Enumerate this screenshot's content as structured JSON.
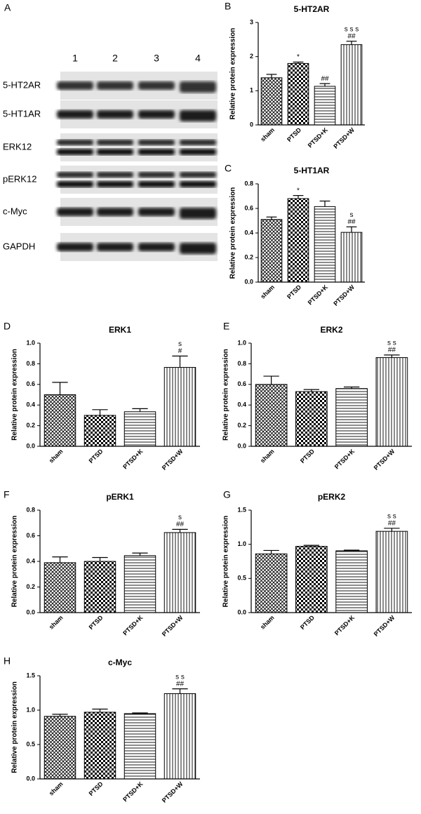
{
  "blot": {
    "panel": "A",
    "lanes": [
      "1",
      "2",
      "3",
      "4"
    ],
    "rows": [
      "5-HT2AR",
      "5-HT1AR",
      "ERK12",
      "pERK12",
      "c-Myc",
      "GAPDH"
    ]
  },
  "chart_data": [
    {
      "type": "bar",
      "panel": "B",
      "title": "5-HT2AR",
      "ylabel": "Relative protein expression",
      "categories": [
        "sham",
        "PTSD",
        "PTSD+K",
        "PTSD+W"
      ],
      "values": [
        1.38,
        1.8,
        1.13,
        2.35
      ],
      "errors": [
        0.1,
        0.04,
        0.08,
        0.1
      ],
      "annotations": [
        null,
        [
          "*"
        ],
        [
          "##"
        ],
        [
          "s s s",
          "##"
        ]
      ],
      "ylim": [
        0,
        3
      ],
      "yticks": [
        0,
        1,
        2,
        3
      ]
    },
    {
      "type": "bar",
      "panel": "C",
      "title": "5-HT1AR",
      "ylabel": "Relative protein expression",
      "categories": [
        "sham",
        "PTSD",
        "PTSD+K",
        "PTSD+W"
      ],
      "values": [
        0.51,
        0.68,
        0.615,
        0.405
      ],
      "errors": [
        0.02,
        0.025,
        0.045,
        0.045
      ],
      "annotations": [
        null,
        [
          "*"
        ],
        null,
        [
          "s",
          "##"
        ]
      ],
      "ylim": [
        0,
        0.8
      ],
      "yticks": [
        {
          "value": 0,
          "label": "0.0"
        },
        0.2,
        0.4,
        0.6,
        0.8
      ]
    },
    {
      "type": "bar",
      "panel": "D",
      "title": "ERK1",
      "ylabel": "Relative protein expression",
      "categories": [
        "sham",
        "PTSD",
        "PTSD+K",
        "PTSD+W"
      ],
      "values": [
        0.5,
        0.3,
        0.335,
        0.765
      ],
      "errors": [
        0.12,
        0.055,
        0.03,
        0.11
      ],
      "annotations": [
        null,
        null,
        null,
        [
          "s",
          "#"
        ]
      ],
      "ylim": [
        0,
        1
      ],
      "yticks": [
        {
          "value": 0,
          "label": "0.0"
        },
        0.2,
        0.4,
        0.6,
        0.8,
        {
          "value": 1,
          "label": "1.0"
        }
      ]
    },
    {
      "type": "bar",
      "panel": "E",
      "title": "ERK2",
      "ylabel": "Relative protein expression",
      "categories": [
        "sham",
        "PTSD",
        "PTSD+K",
        "PTSD+W"
      ],
      "values": [
        0.6,
        0.53,
        0.56,
        0.86
      ],
      "errors": [
        0.08,
        0.02,
        0.015,
        0.025
      ],
      "annotations": [
        null,
        null,
        null,
        [
          "s s",
          "##"
        ]
      ],
      "ylim": [
        0,
        1
      ],
      "yticks": [
        {
          "value": 0,
          "label": "0.0"
        },
        0.2,
        0.4,
        0.6,
        0.8,
        {
          "value": 1,
          "label": "1.0"
        }
      ]
    },
    {
      "type": "bar",
      "panel": "F",
      "title": "pERK1",
      "ylabel": "Relative protein expression",
      "categories": [
        "sham",
        "PTSD",
        "PTSD+K",
        "PTSD+W"
      ],
      "values": [
        0.39,
        0.4,
        0.445,
        0.625
      ],
      "errors": [
        0.045,
        0.03,
        0.02,
        0.025
      ],
      "annotations": [
        null,
        null,
        null,
        [
          "s",
          "##"
        ]
      ],
      "ylim": [
        0,
        0.8
      ],
      "yticks": [
        {
          "value": 0,
          "label": "0.0"
        },
        0.2,
        0.4,
        0.6,
        0.8
      ]
    },
    {
      "type": "bar",
      "panel": "G",
      "title": "pERK2",
      "ylabel": "Relative protein expression",
      "categories": [
        "sham",
        "PTSD",
        "PTSD+K",
        "PTSD+W"
      ],
      "values": [
        0.86,
        0.97,
        0.905,
        1.19
      ],
      "errors": [
        0.05,
        0.015,
        0.01,
        0.045
      ],
      "annotations": [
        null,
        null,
        null,
        [
          "s s",
          "##"
        ]
      ],
      "ylim": [
        0,
        1.5
      ],
      "yticks": [
        {
          "value": 0,
          "label": "0.0"
        },
        0.5,
        {
          "value": 1,
          "label": "1.0"
        },
        1.5
      ]
    },
    {
      "type": "bar",
      "panel": "H",
      "title": "c-Myc",
      "ylabel": "Relative protein expression",
      "categories": [
        "sham",
        "PTSD",
        "PTSD+K",
        "PTSD+W"
      ],
      "values": [
        0.91,
        0.97,
        0.95,
        1.24
      ],
      "errors": [
        0.03,
        0.045,
        0.01,
        0.07
      ],
      "annotations": [
        null,
        null,
        null,
        [
          "s s",
          "##"
        ]
      ],
      "ylim": [
        0,
        1.5
      ],
      "yticks": [
        {
          "value": 0,
          "label": "0.0"
        },
        0.5,
        {
          "value": 1,
          "label": "1.0"
        },
        1.5
      ]
    }
  ]
}
